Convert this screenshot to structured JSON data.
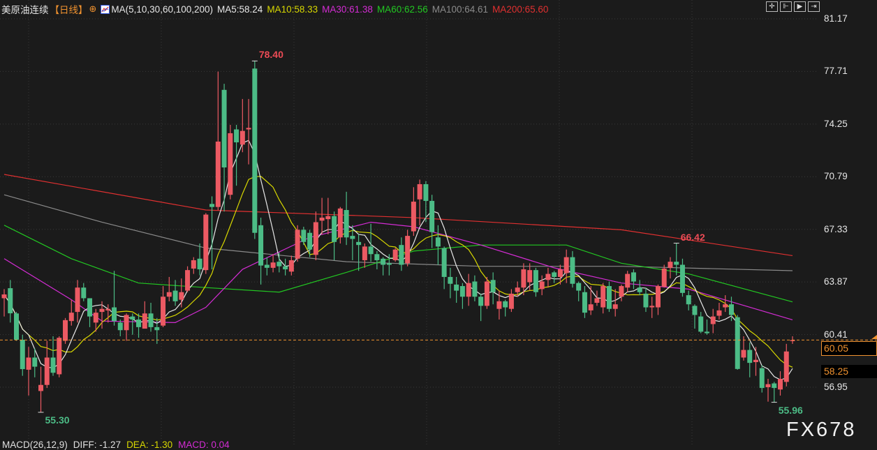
{
  "header": {
    "symbol": "美原油连续",
    "period": "【日线】",
    "crosshair_icon": "crosshair-circle-icon",
    "ma_icon": "ma-chart-icon",
    "ma_label": "MA(5,10,30,60,100,200)",
    "ma_values": [
      {
        "label": "MA5:58.24",
        "color": "#e8e8e8"
      },
      {
        "label": "MA10:58.33",
        "color": "#d8d800"
      },
      {
        "label": "MA30:61.38",
        "color": "#d42cd4"
      },
      {
        "label": "MA60:62.56",
        "color": "#22c722"
      },
      {
        "label": "MA100:64.61",
        "color": "#8a8a8a"
      },
      {
        "label": "MA200:65.60",
        "color": "#e03030"
      }
    ]
  },
  "toolbar": {
    "icons": [
      "crosshair-icon",
      "scroll-start-icon",
      "play-icon",
      "scroll-end-icon"
    ],
    "glyphs": [
      "✛",
      "⊩",
      "▶",
      "⇥"
    ]
  },
  "price_line": {
    "value": 60.05,
    "label": "60.05",
    "color": "#f0922f"
  },
  "ma5_label": "58.25",
  "watermark": "FX678",
  "macd": [
    {
      "label": "MACD(26,12,9)",
      "color": "#e0e0e0"
    },
    {
      "label": "DIFF: -1.27",
      "color": "#e0e0e0"
    },
    {
      "label": "DEA: -1.30",
      "color": "#d8d800"
    },
    {
      "label": "MACD: 0.04",
      "color": "#d42cd4"
    }
  ],
  "chart_data": {
    "type": "candlestick",
    "ylim": [
      54.5,
      81.17
    ],
    "y_ticks": [
      "81.17",
      "77.71",
      "74.25",
      "70.79",
      "67.33",
      "63.87",
      "60.41",
      "56.95"
    ],
    "grid": true,
    "up_color": "#ec5a63",
    "down_color": "#4cbc86",
    "candles_ohlc": [
      [
        62.8,
        63.4,
        61.6,
        63.05
      ],
      [
        63.46,
        64.0,
        61.2,
        61.81
      ],
      [
        61.8,
        61.9,
        60.0,
        60.07
      ],
      [
        60.07,
        60.4,
        57.7,
        58.14
      ],
      [
        58.1,
        59.6,
        56.4,
        58.9
      ],
      [
        58.9,
        59.5,
        57.6,
        58.3
      ],
      [
        56.7,
        58.3,
        55.3,
        57.1
      ],
      [
        57.1,
        60.0,
        56.9,
        58.9
      ],
      [
        58.9,
        60.3,
        57.7,
        57.9
      ],
      [
        57.8,
        60.3,
        57.6,
        60.2
      ],
      [
        60.0,
        61.5,
        59.8,
        61.36
      ],
      [
        61.3,
        62.7,
        61.0,
        61.85
      ],
      [
        61.9,
        64.0,
        61.2,
        63.5
      ],
      [
        63.5,
        63.8,
        62.6,
        62.8
      ],
      [
        62.8,
        62.8,
        60.9,
        61.6
      ],
      [
        61.2,
        62.1,
        60.6,
        61.85
      ],
      [
        61.9,
        62.6,
        60.8,
        62.1
      ],
      [
        62.0,
        62.4,
        61.2,
        62.1
      ],
      [
        62.2,
        64.6,
        61.0,
        61.3
      ],
      [
        61.2,
        61.4,
        60.3,
        60.7
      ],
      [
        60.7,
        61.8,
        60.0,
        61.7
      ],
      [
        61.6,
        61.8,
        60.4,
        61.4
      ],
      [
        61.4,
        61.8,
        60.2,
        60.9
      ],
      [
        60.8,
        62.6,
        61.0,
        61.8
      ],
      [
        61.8,
        62.5,
        60.6,
        60.9
      ],
      [
        60.9,
        61.5,
        59.8,
        60.7
      ],
      [
        61.0,
        63.6,
        60.9,
        62.9
      ],
      [
        62.9,
        64.2,
        62.6,
        63.2
      ],
      [
        63.3,
        64.0,
        62.3,
        62.6
      ],
      [
        62.7,
        64.1,
        62.2,
        63.2
      ],
      [
        63.3,
        64.9,
        63.2,
        64.65
      ],
      [
        64.75,
        65.5,
        64.4,
        65.3
      ],
      [
        65.4,
        66.4,
        64.3,
        64.7
      ],
      [
        64.65,
        68.4,
        64.4,
        68.3
      ],
      [
        69.0,
        69.5,
        64.7,
        68.8
      ],
      [
        68.8,
        77.7,
        68.6,
        73.1
      ],
      [
        76.5,
        76.9,
        68.5,
        71.4
      ],
      [
        69.6,
        74.2,
        69.3,
        73.65
      ],
      [
        73.9,
        74.2,
        70.2,
        73.05
      ],
      [
        72.9,
        75.9,
        72.4,
        73.8
      ],
      [
        73.9,
        75.9,
        71.6,
        74.0
      ],
      [
        77.9,
        78.4,
        66.7,
        67.1
      ],
      [
        67.6,
        68.1,
        63.7,
        64.95
      ],
      [
        65.0,
        65.5,
        64.3,
        64.8
      ],
      [
        64.8,
        65.7,
        64.5,
        65.15
      ],
      [
        65.2,
        65.8,
        64.5,
        64.9
      ],
      [
        64.9,
        65.4,
        64.3,
        64.7
      ],
      [
        64.55,
        65.6,
        64.3,
        65.3
      ],
      [
        65.4,
        67.6,
        65.2,
        67.3
      ],
      [
        67.3,
        67.5,
        66.3,
        66.5
      ],
      [
        67.1,
        67.3,
        65.5,
        66.0
      ],
      [
        65.65,
        68.5,
        65.3,
        67.8
      ],
      [
        67.9,
        69.4,
        67.0,
        68.1
      ],
      [
        68.0,
        69.4,
        67.0,
        68.2
      ],
      [
        68.2,
        68.5,
        65.3,
        66.5
      ],
      [
        66.8,
        68.8,
        66.4,
        68.7
      ],
      [
        68.6,
        69.8,
        66.3,
        66.8
      ],
      [
        66.9,
        67.6,
        65.3,
        66.7
      ],
      [
        66.5,
        67.0,
        64.6,
        66.3
      ],
      [
        65.3,
        66.4,
        64.8,
        66.2
      ],
      [
        66.2,
        67.7,
        65.2,
        65.7
      ],
      [
        65.7,
        65.9,
        64.7,
        65.3
      ],
      [
        65.4,
        65.5,
        64.3,
        65.0
      ],
      [
        65.1,
        65.7,
        64.3,
        65.0
      ],
      [
        65.3,
        66.1,
        65.2,
        66.0
      ],
      [
        66.3,
        66.8,
        64.6,
        65.0
      ],
      [
        65.1,
        67.3,
        64.9,
        66.9
      ],
      [
        67.2,
        70.1,
        66.9,
        69.15
      ],
      [
        69.3,
        70.6,
        67.6,
        70.3
      ],
      [
        70.3,
        70.5,
        67.8,
        69.2
      ],
      [
        69.2,
        69.6,
        66.1,
        67.15
      ],
      [
        66.8,
        67.6,
        65.0,
        66.2
      ],
      [
        66.1,
        66.2,
        63.4,
        64.2
      ],
      [
        64.2,
        64.8,
        62.8,
        63.75
      ],
      [
        63.7,
        64.2,
        62.5,
        63.3
      ],
      [
        63.6,
        63.8,
        62.1,
        62.9
      ],
      [
        62.9,
        64.4,
        62.3,
        63.8
      ],
      [
        63.9,
        64.3,
        62.6,
        62.9
      ],
      [
        62.9,
        63.1,
        61.3,
        62.3
      ],
      [
        62.3,
        64.2,
        62.1,
        63.9
      ],
      [
        64.0,
        64.5,
        62.4,
        63.2
      ],
      [
        62.1,
        63.3,
        61.4,
        62.6
      ],
      [
        62.6,
        62.7,
        61.6,
        62.2
      ],
      [
        62.1,
        63.4,
        61.9,
        63.1
      ],
      [
        63.2,
        63.9,
        62.9,
        63.5
      ],
      [
        63.5,
        65.1,
        63.0,
        64.7
      ],
      [
        63.85,
        65.1,
        63.3,
        64.65
      ],
      [
        64.65,
        64.8,
        62.9,
        63.2
      ],
      [
        63.4,
        64.3,
        63.0,
        63.9
      ],
      [
        64.0,
        64.8,
        63.5,
        64.4
      ],
      [
        64.5,
        64.6,
        63.8,
        64.2
      ],
      [
        64.2,
        65.0,
        63.7,
        64.7
      ],
      [
        64.45,
        66.0,
        63.8,
        65.5
      ],
      [
        65.5,
        65.9,
        63.5,
        63.75
      ],
      [
        63.8,
        63.9,
        62.6,
        63.3
      ],
      [
        63.2,
        63.6,
        61.5,
        61.85
      ],
      [
        62.0,
        63.6,
        61.7,
        62.4
      ],
      [
        62.5,
        63.3,
        62.3,
        62.8
      ],
      [
        62.2,
        63.8,
        61.8,
        63.6
      ],
      [
        63.6,
        63.9,
        61.9,
        62.1
      ],
      [
        62.1,
        63.4,
        61.6,
        62.4
      ],
      [
        62.9,
        63.7,
        62.6,
        63.6
      ],
      [
        63.5,
        64.6,
        63.2,
        64.4
      ],
      [
        64.5,
        64.7,
        63.4,
        63.9
      ],
      [
        63.5,
        64.0,
        63.0,
        63.2
      ],
      [
        63.1,
        63.5,
        61.9,
        62.2
      ],
      [
        62.2,
        62.9,
        61.5,
        62.3
      ],
      [
        62.2,
        63.7,
        61.7,
        63.6
      ],
      [
        63.55,
        65.0,
        63.5,
        64.75
      ],
      [
        64.8,
        65.5,
        64.1,
        65.2
      ],
      [
        65.2,
        66.42,
        64.3,
        65.0
      ],
      [
        65.0,
        65.4,
        62.9,
        63.15
      ],
      [
        63.0,
        63.3,
        62.0,
        62.4
      ],
      [
        62.3,
        62.4,
        60.8,
        61.7
      ],
      [
        61.6,
        61.9,
        60.5,
        60.6
      ],
      [
        60.6,
        61.4,
        60.4,
        60.5
      ],
      [
        61.1,
        62.1,
        60.5,
        61.6
      ],
      [
        61.65,
        62.5,
        61.4,
        62.0
      ],
      [
        62.2,
        63.0,
        61.9,
        62.4
      ],
      [
        62.4,
        62.9,
        61.3,
        61.7
      ],
      [
        61.55,
        61.7,
        58.1,
        58.15
      ],
      [
        58.9,
        60.3,
        58.7,
        59.4
      ],
      [
        59.4,
        59.9,
        57.6,
        58.55
      ],
      [
        58.6,
        59.6,
        57.7,
        58.75
      ],
      [
        58.2,
        58.4,
        56.6,
        56.9
      ],
      [
        56.95,
        57.5,
        56.0,
        57.15
      ],
      [
        57.2,
        57.3,
        55.96,
        56.9
      ],
      [
        56.8,
        58.0,
        56.4,
        57.5
      ],
      [
        57.3,
        59.8,
        57.0,
        59.3
      ],
      [
        60.0,
        60.3,
        59.8,
        60.05
      ]
    ],
    "annotations": [
      {
        "label": "78.40",
        "bar": 41,
        "kind": "high",
        "color": "#ec4b55"
      },
      {
        "label": "55.30",
        "bar": 6,
        "kind": "low",
        "color": "#4cbc86"
      },
      {
        "label": "66.42",
        "bar": 110,
        "kind": "high",
        "color": "#ec4b55"
      },
      {
        "label": "55.96",
        "bar": 126,
        "kind": "low",
        "color": "#4cbc86"
      }
    ],
    "moving_averages": [
      {
        "name": "MA200",
        "color": "#e03030",
        "points": [
          [
            0,
            70.94
          ],
          [
            33,
            68.6
          ],
          [
            67,
            68.1
          ],
          [
            101,
            67.3
          ],
          [
            129,
            65.6
          ]
        ]
      },
      {
        "name": "MA100",
        "color": "#8a8a8a",
        "points": [
          [
            0,
            69.6
          ],
          [
            16,
            67.8
          ],
          [
            33,
            66.1
          ],
          [
            56,
            65.2
          ],
          [
            78,
            64.9
          ],
          [
            101,
            64.9
          ],
          [
            129,
            64.61
          ]
        ]
      },
      {
        "name": "MA60",
        "color": "#22c722",
        "points": [
          [
            0,
            67.6
          ],
          [
            11,
            65.4
          ],
          [
            22,
            63.8
          ],
          [
            33,
            63.5
          ],
          [
            45,
            63.2
          ],
          [
            56,
            64.5
          ],
          [
            67,
            65.9
          ],
          [
            78,
            66.3
          ],
          [
            92,
            66.3
          ],
          [
            101,
            65.1
          ],
          [
            112,
            64.4
          ],
          [
            129,
            62.56
          ]
        ]
      },
      {
        "name": "MA30",
        "color": "#d42cd4",
        "points": [
          [
            0,
            65.4
          ],
          [
            11,
            62.7
          ],
          [
            16,
            61.3
          ],
          [
            28,
            61.2
          ],
          [
            33,
            62.2
          ],
          [
            39,
            64.7
          ],
          [
            50,
            66.8
          ],
          [
            60,
            67.8
          ],
          [
            67,
            67.5
          ],
          [
            78,
            66.3
          ],
          [
            90,
            64.8
          ],
          [
            101,
            63.8
          ],
          [
            112,
            63.4
          ],
          [
            129,
            61.38
          ]
        ]
      },
      {
        "name": "MA10",
        "color": "#d8d800",
        "computed_from_close": 10
      },
      {
        "name": "MA5",
        "color": "#e8e8e8",
        "computed_from_close": 5
      }
    ]
  }
}
